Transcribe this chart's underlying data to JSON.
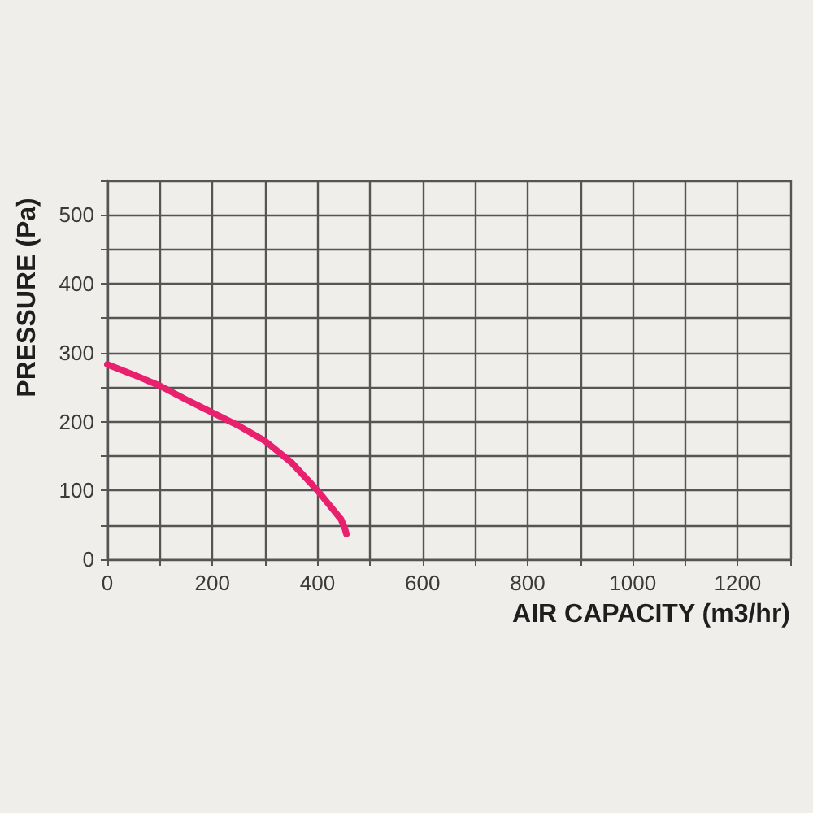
{
  "chart_data": {
    "type": "line",
    "xlabel": "AIR CAPACITY (m3/hr)",
    "ylabel": "PRESSURE (Pa)",
    "x": [
      0,
      50,
      100,
      150,
      200,
      250,
      300,
      350,
      400,
      430,
      445,
      452,
      455
    ],
    "series": [
      {
        "color": "#e8206e",
        "values": [
          283,
          268,
          252,
          232,
          213,
          194,
          172,
          141,
          100,
          72,
          58,
          45,
          37
        ]
      }
    ],
    "xlim": [
      0,
      1300
    ],
    "ylim": [
      0,
      550
    ],
    "xticks": [
      0,
      {
        "value": 100,
        "label": null
      },
      200,
      {
        "value": 300,
        "label": null
      },
      400,
      {
        "value": 500,
        "label": null
      },
      600,
      {
        "value": 700,
        "label": null
      },
      800,
      {
        "value": 900,
        "label": null
      },
      1000,
      {
        "value": 1100,
        "label": null
      },
      1200,
      {
        "value": 1300,
        "label": null
      }
    ],
    "yticks": [
      0,
      {
        "value": 50,
        "label": null
      },
      100,
      {
        "value": 150,
        "label": null
      },
      200,
      {
        "value": 250,
        "label": null
      },
      300,
      {
        "value": 350,
        "label": null
      },
      400,
      {
        "value": 450,
        "label": null
      },
      500,
      {
        "value": 550,
        "label": null
      }
    ],
    "grid": true,
    "marker": "none",
    "line_style": "solid"
  }
}
